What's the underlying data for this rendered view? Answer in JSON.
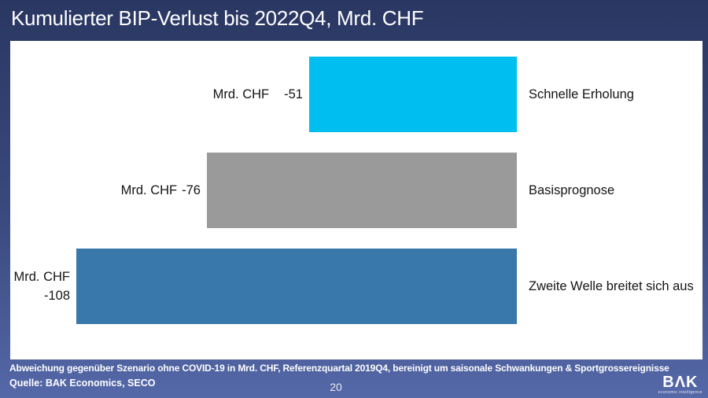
{
  "title": "Kumulierter BIP-Verlust bis 2022Q4, Mrd. CHF",
  "chart_data": {
    "type": "bar",
    "orientation": "horizontal",
    "title": "Kumulierter BIP-Verlust bis 2022Q4, Mrd. CHF",
    "unit": "Mrd. CHF",
    "categories": [
      "Schnelle Erholung",
      "Basisprognose",
      "Zweite Welle breitet sich aus"
    ],
    "values": [
      -51,
      -76,
      -108
    ],
    "xlim": [
      -124,
      0
    ],
    "grid": false,
    "axes_visible": false,
    "data_labels_position": "left-of-bar",
    "category_labels_position": "right-of-zero-line",
    "bars": [
      {
        "prefix": "Mrd. CHF",
        "value": -51,
        "value_label": "-51",
        "category": "Schnelle Erholung",
        "color": "#00bff0"
      },
      {
        "prefix": "Mrd. CHF",
        "value": -76,
        "value_label": "-76",
        "category": "Basisprognose",
        "color": "#9a9a9a"
      },
      {
        "prefix": "Mrd. CHF",
        "value": -108,
        "value_label": "-108",
        "category": "Zweite Welle breitet sich aus",
        "color": "#3878ab"
      }
    ]
  },
  "footer": {
    "footnote": "Abweichung gegenüber Szenario ohne COVID-19 in Mrd. CHF, Referenzquartal 2019Q4, bereinigt um saisonale Schwankungen & Sportgrossereignisse",
    "source": "Quelle: BAK Economics, SECO",
    "page_number": "20"
  },
  "logo": {
    "text": "BΛK",
    "tagline": "economic intelligence"
  },
  "colors": {
    "background_top": "#2a3762",
    "background_bottom": "#5568a8",
    "panel": "#ffffff",
    "title_text": "#ffffff",
    "footer_text": "#ffffff",
    "bar_cyan": "#00bff0",
    "bar_gray": "#9a9a9a",
    "bar_blue": "#3878ab"
  }
}
